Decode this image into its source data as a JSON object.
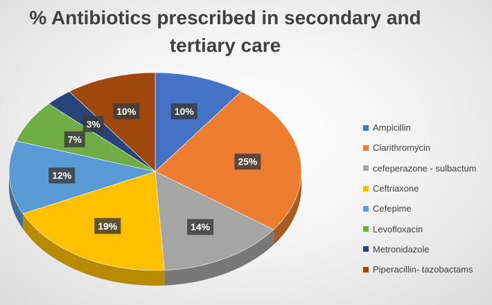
{
  "chart_data": {
    "type": "pie",
    "title_lines": [
      "% Antibiotics prescribed in secondary and",
      "tertiary care"
    ],
    "legend_position": "right",
    "slices": [
      {
        "label": "Ampicillin",
        "value": 10,
        "display": "10%",
        "color": "#4472C4"
      },
      {
        "label": "Clarithromycin",
        "value": 25,
        "display": "25%",
        "color": "#ED7D31"
      },
      {
        "label": "cefeperazone - sulbactum",
        "value": 14,
        "display": "14%",
        "color": "#A5A5A5"
      },
      {
        "label": "Ceftriaxone",
        "value": 19,
        "display": "19%",
        "color": "#FFC000"
      },
      {
        "label": "Cefepime",
        "value": 12,
        "display": "12%",
        "color": "#5B9BD5"
      },
      {
        "label": "Levofloxacin",
        "value": 7,
        "display": "7%",
        "color": "#70AD47"
      },
      {
        "label": "Metronidazole",
        "value": 3,
        "display": "3%",
        "color": "#264478"
      },
      {
        "label": "Piperacillin- tazobactams",
        "value": 10,
        "display": "10%",
        "color": "#9E480E"
      }
    ]
  }
}
